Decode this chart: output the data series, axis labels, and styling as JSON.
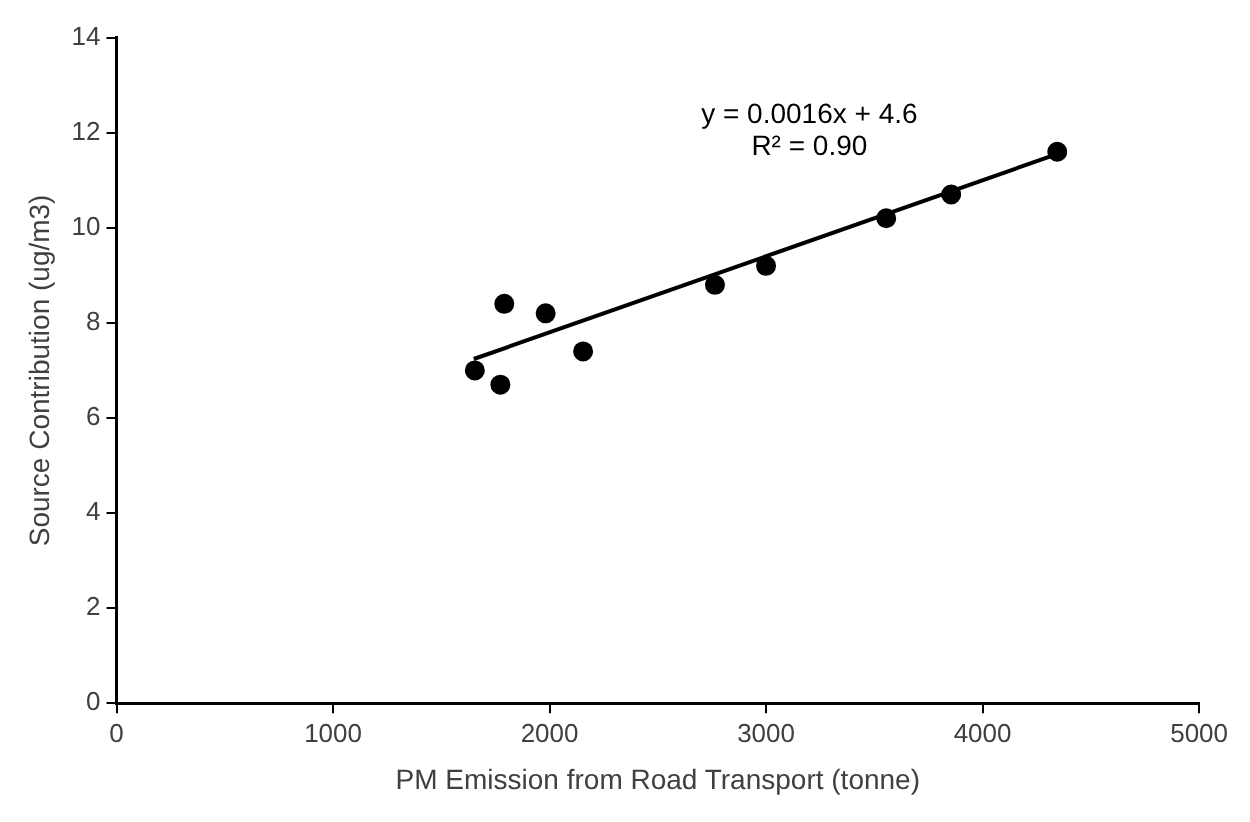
{
  "chart_data": {
    "type": "scatter",
    "xlabel": "PM Emission from Road Transport (tonne)",
    "ylabel": "Source Contribution (ug/m3)",
    "xlim": [
      0,
      5000
    ],
    "xticks": [
      0,
      1000,
      2000,
      3000,
      4000,
      5000
    ],
    "ylim": [
      0,
      14
    ],
    "yticks": [
      0,
      2,
      4,
      6,
      8,
      10,
      12,
      14
    ],
    "grid": false,
    "legend": false,
    "marker": "circle",
    "annotations": [
      "y = 0.0016x + 4.6",
      "R² = 0.90"
    ],
    "series": [
      {
        "type": "scatter",
        "color": "#000000",
        "x": [
          1655,
          1773,
          1791,
          1982,
          2155,
          2764,
          3000,
          3555,
          3855,
          4345
        ],
        "values": [
          7.0,
          6.7,
          8.4,
          8.2,
          7.4,
          8.8,
          9.2,
          10.2,
          10.7,
          11.6
        ]
      },
      {
        "type": "line",
        "color": "#000000",
        "marker": "none",
        "line_style": "solid",
        "x": [
          1650,
          4350
        ],
        "values": [
          7.24,
          11.56
        ]
      }
    ]
  }
}
